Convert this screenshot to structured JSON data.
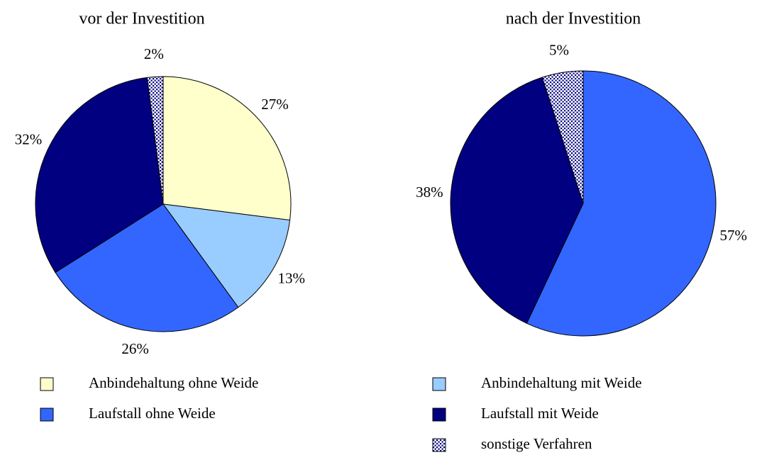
{
  "chart_data": [
    {
      "type": "pie",
      "title": "vor der Investition",
      "categories": [
        "Anbindehaltung ohne Weide",
        "Anbindehaltung mit Weide",
        "Laufstall ohne Weide",
        "Laufstall mit Weide",
        "sonstige Verfahren"
      ],
      "values": [
        27,
        13,
        26,
        32,
        2
      ],
      "value_labels": [
        "27%",
        "13%",
        "26%",
        "32%",
        "2%"
      ],
      "colors": [
        "#ffffcc",
        "#99ccff",
        "#3366ff",
        "#000080",
        "#ffffff"
      ],
      "patterns": [
        null,
        null,
        null,
        null,
        "dots"
      ]
    },
    {
      "type": "pie",
      "title": "nach der Investition",
      "categories": [
        "Laufstall ohne Weide",
        "Laufstall mit Weide",
        "sonstige Verfahren"
      ],
      "values": [
        57,
        38,
        5
      ],
      "value_labels": [
        "57%",
        "38%",
        "5%"
      ],
      "colors": [
        "#3366ff",
        "#000080",
        "#ffffff"
      ],
      "patterns": [
        null,
        null,
        "dots"
      ]
    }
  ]
}
